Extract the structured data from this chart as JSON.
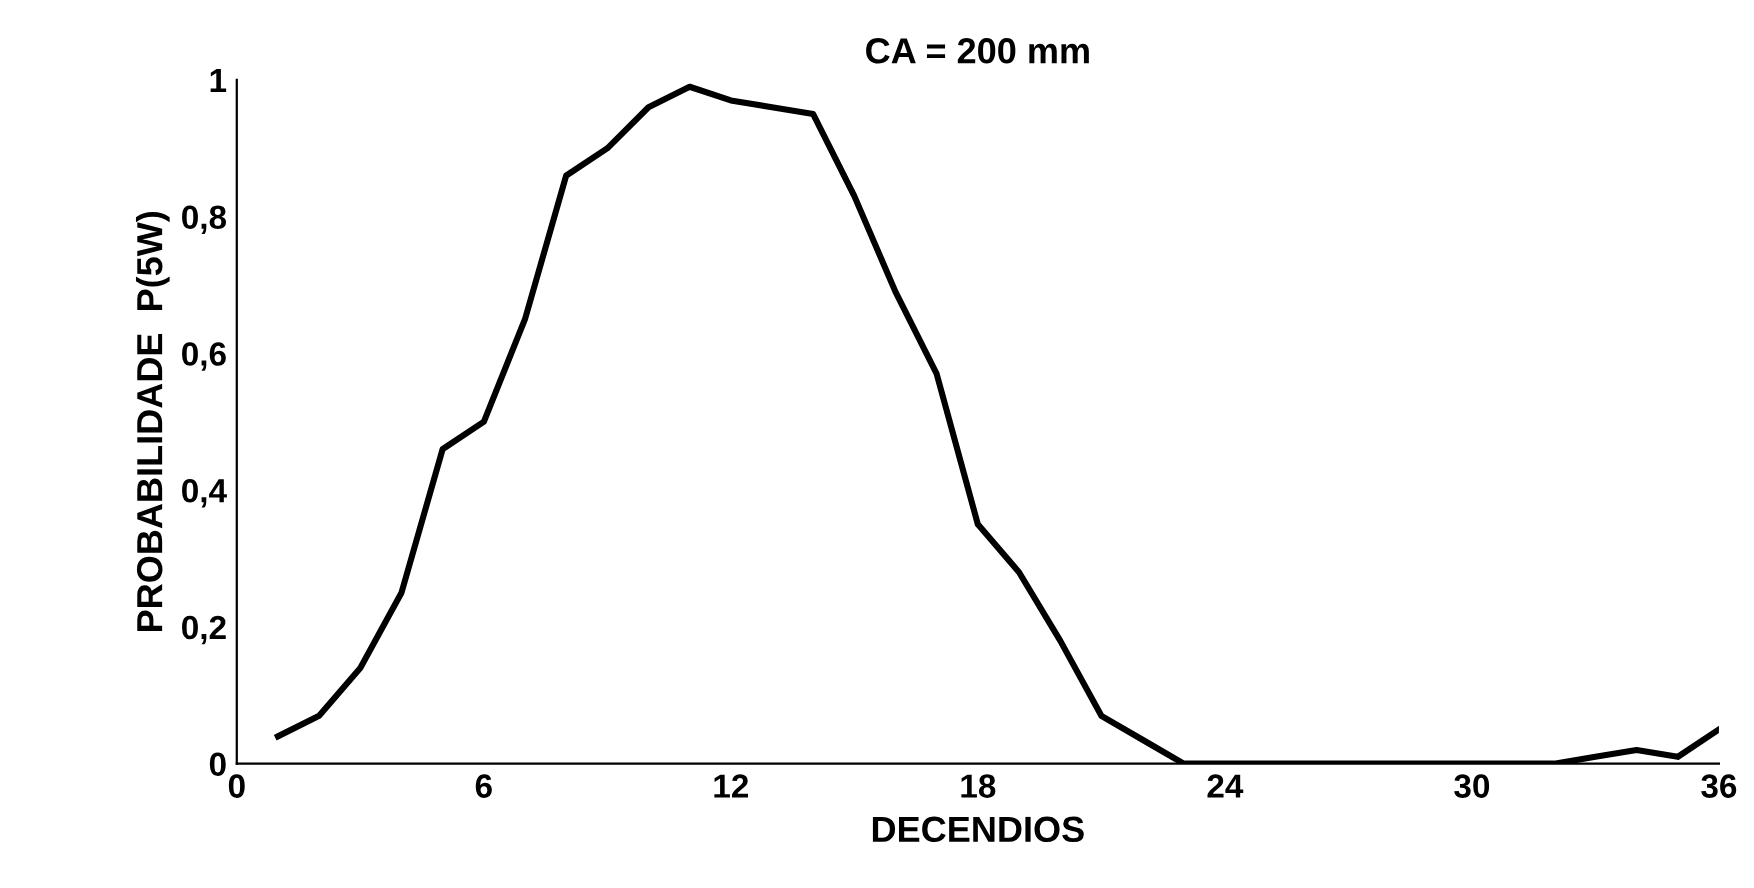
{
  "chart_data": {
    "type": "line",
    "title": "CA = 200 mm",
    "xlabel": "DECENDIOS",
    "ylabel": "PROBABILIDADE  P(5W)",
    "x": [
      1,
      2,
      3,
      4,
      5,
      6,
      7,
      8,
      9,
      10,
      11,
      12,
      13,
      14,
      15,
      16,
      17,
      18,
      19,
      20,
      21,
      22,
      23,
      24,
      25,
      26,
      27,
      28,
      29,
      30,
      31,
      32,
      33,
      34,
      35,
      36
    ],
    "series": [
      {
        "color": "#000000",
        "values": [
          0.04,
          0.07,
          0.14,
          0.25,
          0.46,
          0.5,
          0.65,
          0.86,
          0.9,
          0.96,
          0.99,
          0.97,
          0.96,
          0.95,
          0.83,
          0.69,
          0.57,
          0.35,
          0.28,
          0.18,
          0.07,
          0.035,
          0,
          0,
          0,
          0,
          0,
          0,
          0,
          0,
          0,
          0,
          0.01,
          0.02,
          0.01,
          0.05
        ]
      }
    ],
    "xlim": [
      0,
      36
    ],
    "xticks": [
      0,
      6,
      12,
      18,
      24,
      30,
      36
    ],
    "ylim": [
      0,
      1
    ],
    "yticks": [
      0,
      {
        "value": 0.2,
        "label": "0,2"
      },
      {
        "value": 0.4,
        "label": "0,4"
      },
      {
        "value": 0.6,
        "label": "0,6"
      },
      {
        "value": 0.8,
        "label": "0,8"
      },
      1
    ],
    "grid": false,
    "legend": false,
    "marker": "none",
    "line_style": "solid"
  }
}
